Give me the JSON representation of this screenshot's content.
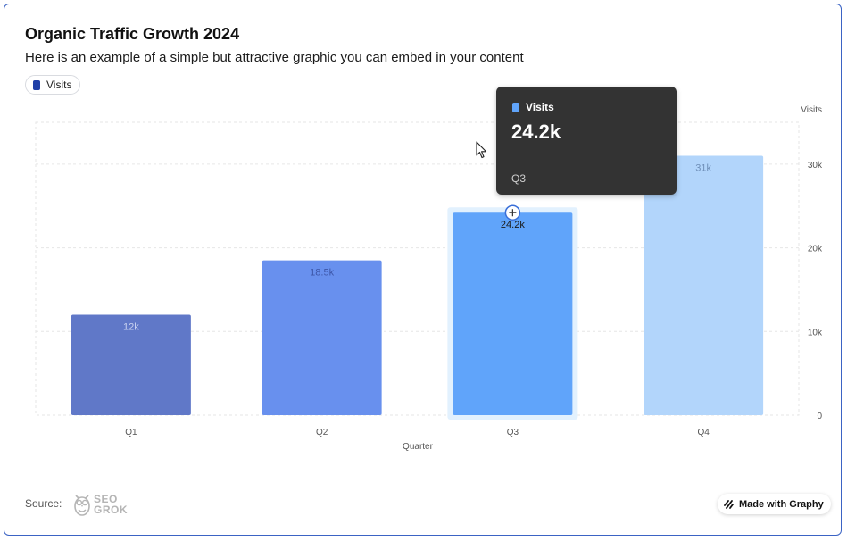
{
  "header": {
    "title": "Organic Traffic Growth 2024",
    "subtitle": "Here is an example of a simple but attractive graphic you can embed in your content"
  },
  "legend": {
    "label": "Visits",
    "color": "#1f3fa8"
  },
  "chart_data": {
    "type": "bar",
    "categories": [
      "Q1",
      "Q2",
      "Q3",
      "Q4"
    ],
    "values": [
      12000,
      18500,
      24200,
      31000
    ],
    "value_labels": [
      "12k",
      "18.5k",
      "24.2k",
      "31k"
    ],
    "bar_colors": [
      "#6078c8",
      "#6890ee",
      "#60a4fa",
      "#b2d5fb"
    ],
    "xlabel": "Quarter",
    "ylabel": "Visits",
    "ylim": [
      0,
      35000
    ],
    "yticks": [
      0,
      10000,
      20000,
      30000
    ],
    "ytick_labels": [
      "0",
      "10k",
      "20k",
      "30k"
    ],
    "y_axis_side": "right",
    "grid": true,
    "highlighted_index": 2
  },
  "tooltip": {
    "series_name": "Visits",
    "value": "24.2k",
    "category": "Q3",
    "swatch_color": "#60a4fa"
  },
  "footer": {
    "source_label": "Source:",
    "logo_line1": "SEO",
    "logo_line2": "GROK",
    "made_with": "Made with Graphy"
  }
}
